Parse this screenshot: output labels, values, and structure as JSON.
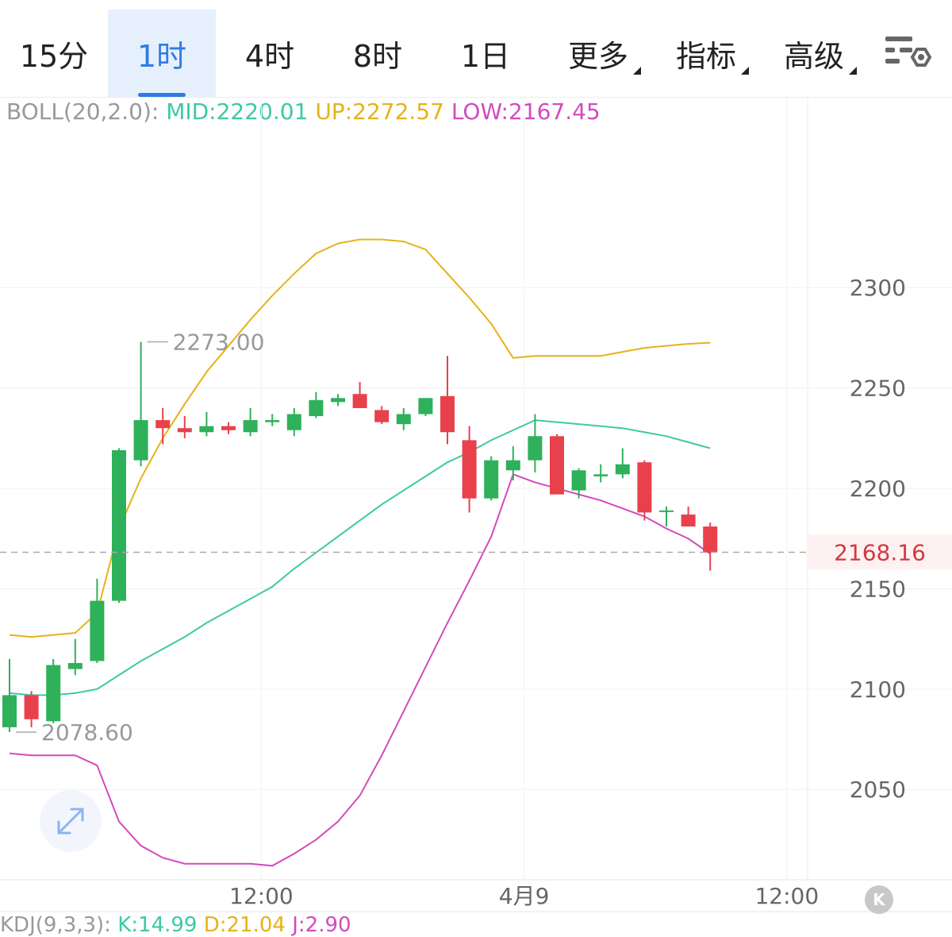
{
  "tabs": [
    {
      "label": "15分",
      "active": false
    },
    {
      "label": "1时",
      "active": true
    },
    {
      "label": "4时",
      "active": false
    },
    {
      "label": "8时",
      "active": false
    },
    {
      "label": "1日",
      "active": false
    },
    {
      "label": "更多",
      "active": false,
      "dropdown": true
    },
    {
      "label": "指标",
      "active": false,
      "dropdown": true
    },
    {
      "label": "高级",
      "active": false,
      "dropdown": true
    }
  ],
  "icons": {
    "settings": "chart-settings-icon",
    "expand": "expand-icon",
    "k": "k-logo-icon"
  },
  "boll": {
    "name": "BOLL(20,2.0):",
    "mid": "MID:2220.01",
    "up": "UP:2272.57",
    "low": "LOW:2167.45"
  },
  "kdj": {
    "name": "KDJ(9,3,3):",
    "k": "K:14.99",
    "d": "D:21.04",
    "j": "J:2.90"
  },
  "k_button": "K",
  "colors": {
    "up": "#2fb05a",
    "down": "#e8414c",
    "boll_up": "#e5b318",
    "boll_mid": "#3dc9a5",
    "boll_low": "#d24bbd",
    "text_gray": "#999999",
    "accent": "#2f7be6",
    "price_label": "#d4373f"
  },
  "chart_data": {
    "type": "candlestick",
    "y_ticks": [
      "2300",
      "2250",
      "2200",
      "2150",
      "2100",
      "2050"
    ],
    "y_tick_values": [
      2300,
      2250,
      2200,
      2150,
      2100,
      2050
    ],
    "ylim": [
      2005,
      2380
    ],
    "x_ticks": [
      "12:00",
      "4月9",
      "12:00"
    ],
    "x_tick_index": [
      11.5,
      23.5,
      35.5
    ],
    "current_price": "2168.16",
    "current_price_value": 2168.16,
    "max_label": "2273.00",
    "max_value": 2273.0,
    "max_index": 6,
    "min_label": "2078.60",
    "min_value": 2078.6,
    "min_index": 0,
    "candles": [
      {
        "o": 2081,
        "h": 2115,
        "l": 2078.6,
        "c": 2097
      },
      {
        "o": 2097,
        "h": 2099,
        "l": 2081,
        "c": 2085
      },
      {
        "o": 2084,
        "h": 2115,
        "l": 2083,
        "c": 2112
      },
      {
        "o": 2110,
        "h": 2125,
        "l": 2107,
        "c": 2113
      },
      {
        "o": 2114,
        "h": 2155,
        "l": 2113,
        "c": 2144
      },
      {
        "o": 2144,
        "h": 2220,
        "l": 2143,
        "c": 2219
      },
      {
        "o": 2214,
        "h": 2273,
        "l": 2211,
        "c": 2234
      },
      {
        "o": 2234,
        "h": 2240,
        "l": 2222,
        "c": 2230
      },
      {
        "o": 2230,
        "h": 2236,
        "l": 2225,
        "c": 2228
      },
      {
        "o": 2228,
        "h": 2238,
        "l": 2226,
        "c": 2231
      },
      {
        "o": 2231,
        "h": 2233,
        "l": 2227,
        "c": 2229
      },
      {
        "o": 2228,
        "h": 2240,
        "l": 2226,
        "c": 2234
      },
      {
        "o": 2233,
        "h": 2237,
        "l": 2231,
        "c": 2234
      },
      {
        "o": 2229,
        "h": 2240,
        "l": 2226,
        "c": 2237
      },
      {
        "o": 2236,
        "h": 2248,
        "l": 2235,
        "c": 2244
      },
      {
        "o": 2243,
        "h": 2247,
        "l": 2241,
        "c": 2245
      },
      {
        "o": 2247,
        "h": 2253,
        "l": 2240,
        "c": 2240
      },
      {
        "o": 2239,
        "h": 2241,
        "l": 2232,
        "c": 2233
      },
      {
        "o": 2232,
        "h": 2240,
        "l": 2229,
        "c": 2237
      },
      {
        "o": 2237,
        "h": 2245,
        "l": 2236,
        "c": 2245
      },
      {
        "o": 2246,
        "h": 2266,
        "l": 2222,
        "c": 2228
      },
      {
        "o": 2224,
        "h": 2231,
        "l": 2188,
        "c": 2195
      },
      {
        "o": 2195,
        "h": 2216,
        "l": 2194,
        "c": 2214
      },
      {
        "o": 2209,
        "h": 2221,
        "l": 2204,
        "c": 2214
      },
      {
        "o": 2214,
        "h": 2237,
        "l": 2208,
        "c": 2226
      },
      {
        "o": 2226,
        "h": 2227,
        "l": 2197,
        "c": 2197
      },
      {
        "o": 2199,
        "h": 2210,
        "l": 2195,
        "c": 2209
      },
      {
        "o": 2206,
        "h": 2212,
        "l": 2203,
        "c": 2207
      },
      {
        "o": 2207,
        "h": 2220,
        "l": 2205,
        "c": 2212
      },
      {
        "o": 2213,
        "h": 2214,
        "l": 2184,
        "c": 2188
      },
      {
        "o": 2189,
        "h": 2191,
        "l": 2181,
        "c": 2189
      },
      {
        "o": 2187,
        "h": 2191,
        "l": 2182,
        "c": 2181
      },
      {
        "o": 2181,
        "h": 2183,
        "l": 2159,
        "c": 2168
      }
    ],
    "boll_up_series": [
      [
        0,
        2127
      ],
      [
        1,
        2126
      ],
      [
        2,
        2127
      ],
      [
        3,
        2128
      ],
      [
        4,
        2138
      ],
      [
        5,
        2180
      ],
      [
        6,
        2205
      ],
      [
        7,
        2225
      ],
      [
        8,
        2242
      ],
      [
        9,
        2258
      ],
      [
        10,
        2271
      ],
      [
        11,
        2284
      ],
      [
        12,
        2296
      ],
      [
        13,
        2307
      ],
      [
        14,
        2317
      ],
      [
        15,
        2322
      ],
      [
        16,
        2324
      ],
      [
        17,
        2324
      ],
      [
        18,
        2323
      ],
      [
        19,
        2319
      ],
      [
        20,
        2307
      ],
      [
        21,
        2295
      ],
      [
        22,
        2282
      ],
      [
        23,
        2265
      ],
      [
        24,
        2266
      ],
      [
        25,
        2266
      ],
      [
        26,
        2266
      ],
      [
        27,
        2266
      ],
      [
        28,
        2268
      ],
      [
        29,
        2270
      ],
      [
        30,
        2271
      ],
      [
        31,
        2272
      ],
      [
        32,
        2272.57
      ]
    ],
    "boll_mid_series": [
      [
        0,
        2098
      ],
      [
        1,
        2097
      ],
      [
        2,
        2097
      ],
      [
        3,
        2098
      ],
      [
        4,
        2100
      ],
      [
        5,
        2107
      ],
      [
        6,
        2114
      ],
      [
        7,
        2120
      ],
      [
        8,
        2126
      ],
      [
        9,
        2133
      ],
      [
        10,
        2139
      ],
      [
        11,
        2145
      ],
      [
        12,
        2151
      ],
      [
        13,
        2160
      ],
      [
        14,
        2168
      ],
      [
        15,
        2176
      ],
      [
        16,
        2184
      ],
      [
        17,
        2192
      ],
      [
        18,
        2199
      ],
      [
        19,
        2206
      ],
      [
        20,
        2213
      ],
      [
        21,
        2218
      ],
      [
        22,
        2224
      ],
      [
        23,
        2229
      ],
      [
        24,
        2234
      ],
      [
        25,
        2233
      ],
      [
        26,
        2232
      ],
      [
        27,
        2231
      ],
      [
        28,
        2230
      ],
      [
        29,
        2228
      ],
      [
        30,
        2226
      ],
      [
        31,
        2223
      ],
      [
        32,
        2220.01
      ]
    ],
    "boll_low_series": [
      [
        0,
        2068
      ],
      [
        1,
        2067
      ],
      [
        2,
        2067
      ],
      [
        3,
        2067
      ],
      [
        4,
        2062
      ],
      [
        5,
        2034
      ],
      [
        6,
        2022
      ],
      [
        7,
        2016
      ],
      [
        8,
        2013
      ],
      [
        9,
        2013
      ],
      [
        10,
        2013
      ],
      [
        11,
        2013
      ],
      [
        12,
        2012
      ],
      [
        13,
        2018
      ],
      [
        14,
        2025
      ],
      [
        15,
        2034
      ],
      [
        16,
        2047
      ],
      [
        17,
        2067
      ],
      [
        18,
        2089
      ],
      [
        19,
        2111
      ],
      [
        20,
        2133
      ],
      [
        21,
        2154
      ],
      [
        22,
        2176
      ],
      [
        23,
        2207
      ],
      [
        24,
        2203
      ],
      [
        25,
        2200
      ],
      [
        26,
        2197
      ],
      [
        27,
        2194
      ],
      [
        28,
        2190
      ],
      [
        29,
        2186
      ],
      [
        30,
        2180
      ],
      [
        31,
        2175
      ],
      [
        32,
        2167.45
      ]
    ]
  }
}
